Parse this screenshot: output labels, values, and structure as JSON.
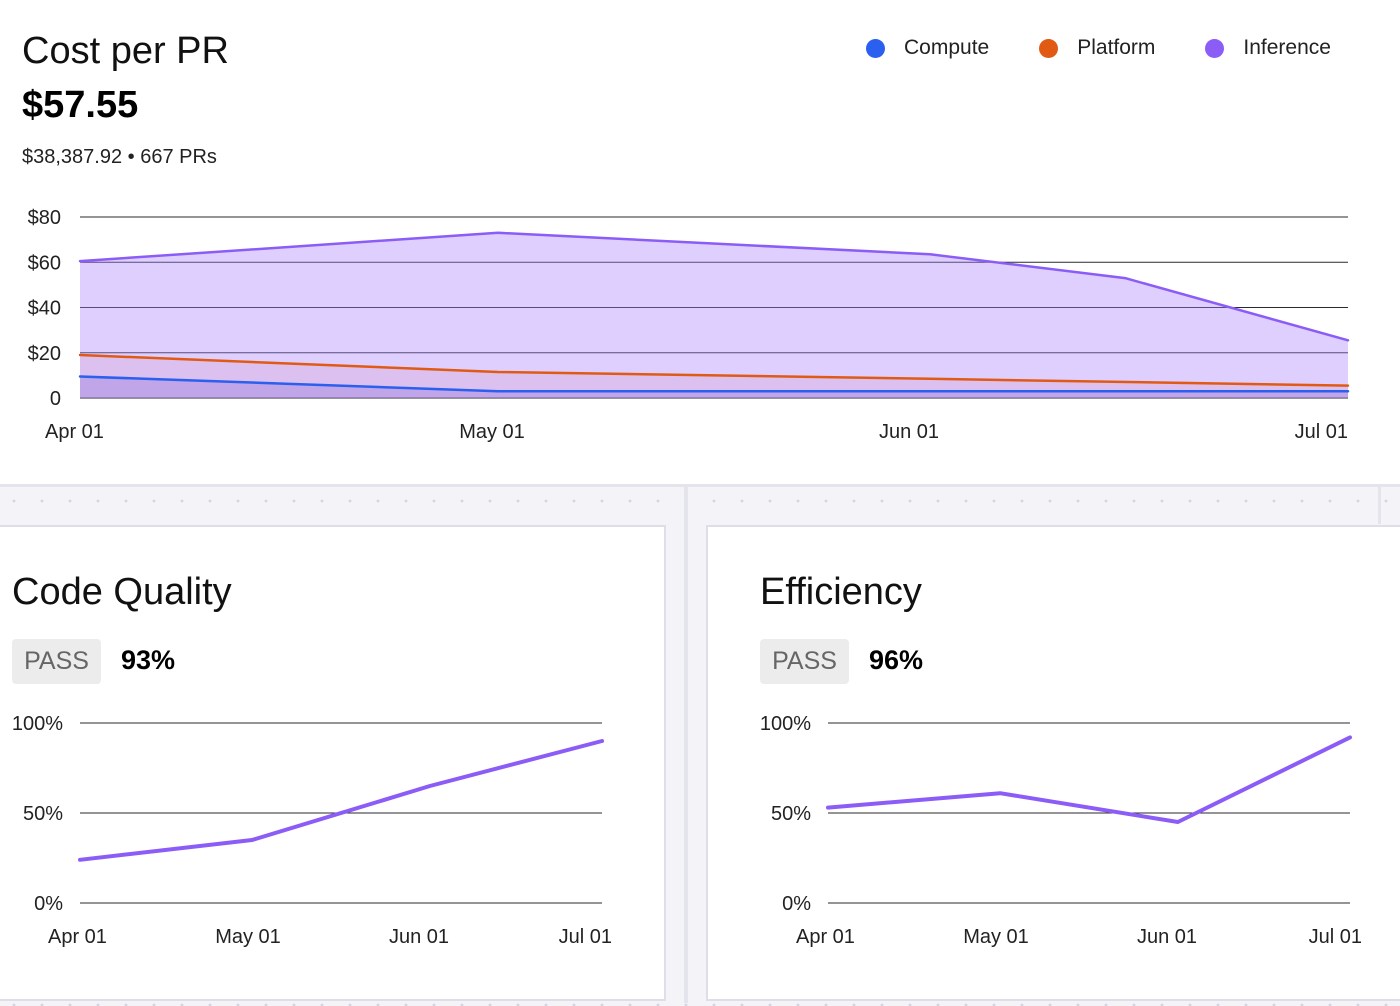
{
  "cost_panel": {
    "title": "Cost per PR",
    "value": "$57.55",
    "subtitle": "$38,387.92 • 667 PRs"
  },
  "legend": [
    {
      "label": "Compute",
      "color": "#2b5ff0"
    },
    {
      "label": "Platform",
      "color": "#e05a14"
    },
    {
      "label": "Inference",
      "color": "#8b5cf6"
    }
  ],
  "quality_panel": {
    "title": "Code Quality",
    "badge": "PASS",
    "percent": "93%"
  },
  "efficiency_panel": {
    "title": "Efficiency",
    "badge": "PASS",
    "percent": "96%"
  },
  "chart_data": [
    {
      "type": "area",
      "title": "Cost per PR",
      "x": [
        "Apr 01",
        "May 01",
        "Jun 01",
        "Jul 01"
      ],
      "x_dates": [
        "2024-04-01",
        "2024-05-01",
        "2024-06-01",
        "2024-07-01"
      ],
      "y_ticks": [
        "$80",
        "$60",
        "$40",
        "$20",
        "0"
      ],
      "ylim": [
        0,
        80
      ],
      "grid": true,
      "legend_position": "top-right",
      "series": [
        {
          "name": "Compute",
          "color": "#2b5ff0",
          "points": [
            [
              "2024-04-01",
              9.5
            ],
            [
              "2024-05-01",
              3
            ],
            [
              "2024-06-01",
              3
            ],
            [
              "2024-07-01",
              3
            ]
          ]
        },
        {
          "name": "Platform",
          "color": "#e05a14",
          "points": [
            [
              "2024-04-01",
              19
            ],
            [
              "2024-05-01",
              11.5
            ],
            [
              "2024-06-01",
              8.5
            ],
            [
              "2024-07-01",
              5.5
            ]
          ]
        },
        {
          "name": "Inference",
          "color": "#8b5cf6",
          "points": [
            [
              "2024-04-01",
              60.5
            ],
            [
              "2024-05-01",
              73
            ],
            [
              "2024-06-01",
              63.5
            ],
            [
              "2024-06-15",
              53
            ],
            [
              "2024-07-01",
              25.5
            ]
          ]
        }
      ]
    },
    {
      "type": "line",
      "title": "Code Quality",
      "x": [
        "Apr 01",
        "May 01",
        "Jun 01",
        "Jul 01"
      ],
      "y_ticks": [
        "100%",
        "50%",
        "0%"
      ],
      "ylim": [
        0,
        100
      ],
      "grid": true,
      "series": [
        {
          "color": "#8b5cf6",
          "points": [
            [
              "2024-04-01",
              24
            ],
            [
              "2024-05-01",
              35
            ],
            [
              "2024-06-01",
              65
            ],
            [
              "2024-07-01",
              90
            ]
          ]
        }
      ]
    },
    {
      "type": "line",
      "title": "Efficiency",
      "x": [
        "Apr 01",
        "May 01",
        "Jun 01",
        "Jul 01"
      ],
      "y_ticks": [
        "100%",
        "50%",
        "0%"
      ],
      "ylim": [
        0,
        100
      ],
      "grid": true,
      "series": [
        {
          "color": "#8b5cf6",
          "points": [
            [
              "2024-04-01",
              53
            ],
            [
              "2024-05-01",
              61
            ],
            [
              "2024-06-01",
              45
            ],
            [
              "2024-07-01",
              92
            ]
          ]
        }
      ]
    }
  ]
}
